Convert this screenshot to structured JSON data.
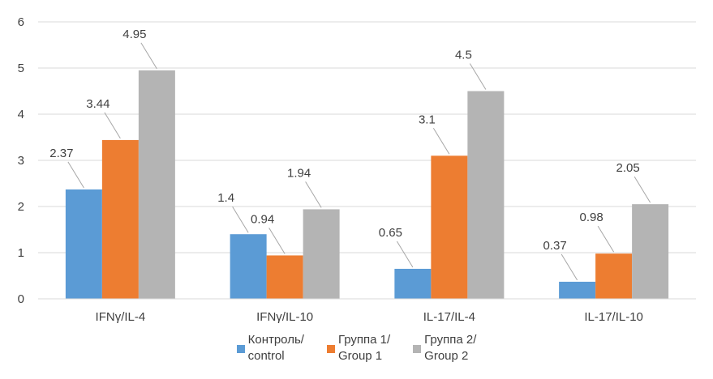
{
  "chart_data": {
    "type": "bar",
    "categories": [
      "IFNγ/IL-4",
      "IFNγ/IL-10",
      "IL-17/IL-4",
      "IL-17/IL-10"
    ],
    "series": [
      {
        "name": "Контроль/\ncontrol",
        "color": "#5b9bd5",
        "values": [
          2.37,
          1.4,
          0.65,
          0.37
        ]
      },
      {
        "name": "Группа 1/\nGroup 1",
        "color": "#ed7d31",
        "values": [
          3.44,
          0.94,
          3.1,
          0.98
        ]
      },
      {
        "name": "Группа 2/\nGroup 2",
        "color": "#b4b4b4",
        "values": [
          4.95,
          1.94,
          4.5,
          2.05
        ]
      }
    ],
    "data_labels": [
      [
        "2.37",
        "1.4",
        "0.65",
        "0.37"
      ],
      [
        "3.44",
        "0.94",
        "3.1",
        "0.98"
      ],
      [
        "4.95",
        "1.94",
        "4.5",
        "2.05"
      ]
    ],
    "yticks": [
      "0",
      "1",
      "2",
      "3",
      "4",
      "5",
      "6"
    ],
    "ylim": [
      0,
      6
    ],
    "grid": true,
    "legend_position": "bottom",
    "title": "",
    "xlabel": "",
    "ylabel": ""
  }
}
